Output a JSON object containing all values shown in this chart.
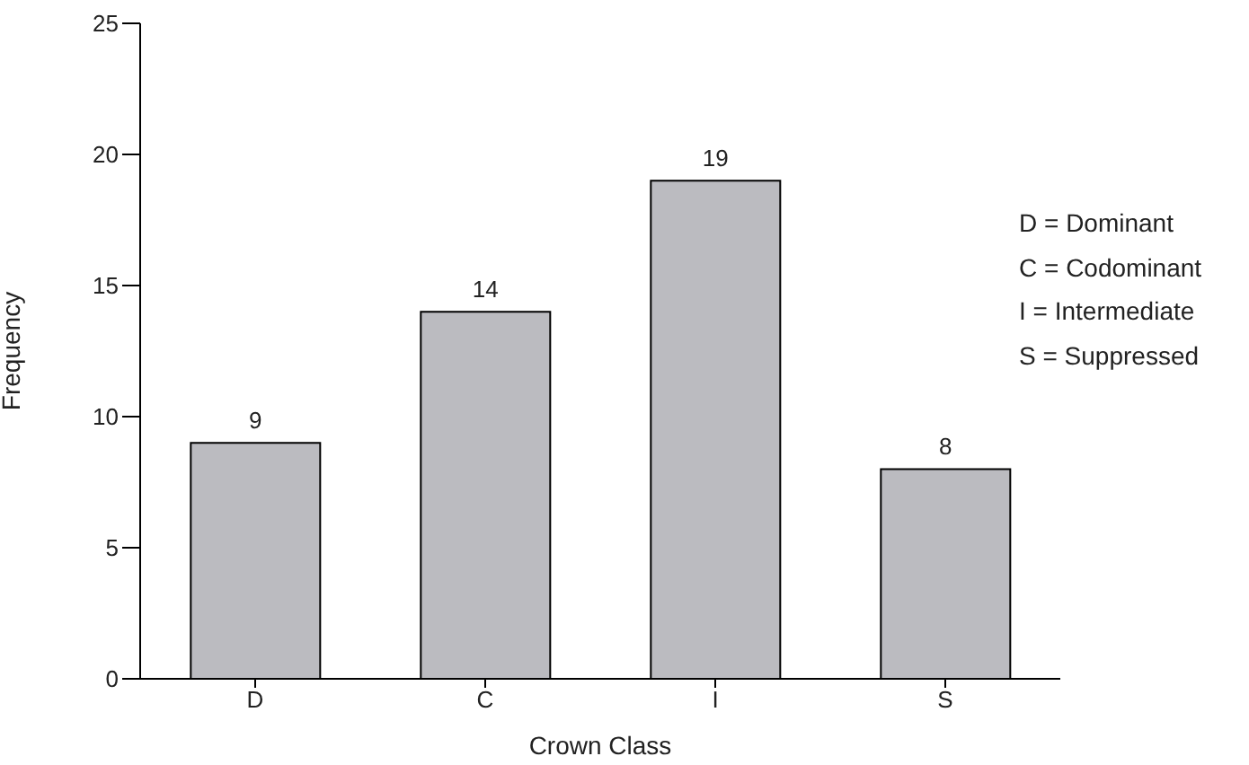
{
  "chart_data": {
    "type": "bar",
    "xlabel": "Crown Class",
    "ylabel": "Frequency",
    "categories": [
      "D",
      "C",
      "I",
      "S"
    ],
    "values": [
      9,
      14,
      19,
      8
    ],
    "color": "#bbbbc0",
    "ylim": [
      0,
      25
    ],
    "yticks": [
      0,
      5,
      10,
      15,
      20,
      25
    ],
    "data_labels": true,
    "grid": false,
    "legend": false,
    "annotations": [
      "D = Dominant",
      "C = Codominant",
      "I = Intermediate",
      "S = Suppressed"
    ]
  }
}
